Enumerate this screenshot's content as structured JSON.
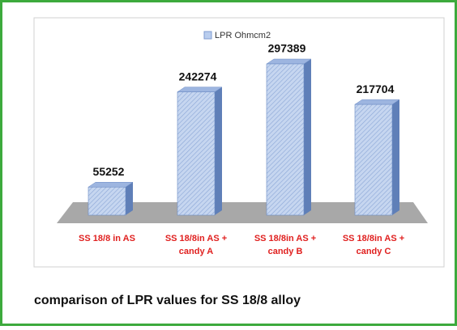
{
  "chart_data": {
    "type": "bar3d",
    "caption": "comparison of LPR values for SS 18/8 alloy",
    "categories": [
      [
        "SS 18/8 in AS"
      ],
      [
        "SS 18/8in AS +",
        "candy A"
      ],
      [
        "SS 18/8in AS +",
        "candy B"
      ],
      [
        "SS 18/8in AS +",
        "candy C"
      ]
    ],
    "series": [
      {
        "name": "LPR Ohmcm2",
        "color": "#b9cdee",
        "values": [
          55252,
          242274,
          297389,
          217704
        ]
      }
    ],
    "legend": "top"
  }
}
